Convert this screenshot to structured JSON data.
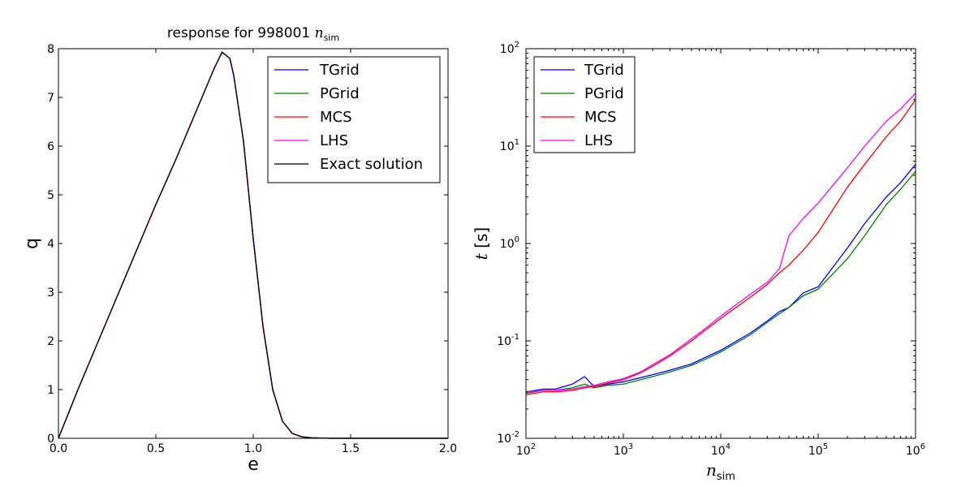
{
  "colors": {
    "TGrid": "#0000ff",
    "PGrid": "#008000",
    "MCS": "#ff0000",
    "LHS": "#ff00ff",
    "Exact solution": "#000000"
  },
  "chart_data": [
    {
      "type": "line",
      "title": "response for 998001",
      "title_math": "n",
      "title_math_sub": "sim",
      "xlabel": "e",
      "ylabel": "q",
      "xlim": [
        0.0,
        2.0
      ],
      "ylim": [
        0,
        8
      ],
      "xticks": [
        "0.0",
        "0.5",
        "1.0",
        "1.5",
        "2.0"
      ],
      "yticks": [
        "0",
        "1",
        "2",
        "3",
        "4",
        "5",
        "6",
        "7",
        "8"
      ],
      "legend_position": "upper right",
      "legend": [
        "TGrid",
        "PGrid",
        "MCS",
        "LHS",
        "Exact solution"
      ],
      "x": [
        0.0,
        0.1,
        0.2,
        0.3,
        0.4,
        0.5,
        0.6,
        0.7,
        0.8,
        0.84,
        0.88,
        0.9,
        0.95,
        1.0,
        1.05,
        1.1,
        1.15,
        1.2,
        1.25,
        1.3,
        1.4,
        1.5,
        1.75,
        2.0
      ],
      "series": [
        {
          "name": "TGrid",
          "values": [
            0.0,
            1.0,
            1.95,
            2.9,
            3.85,
            4.8,
            5.7,
            6.65,
            7.6,
            7.93,
            7.8,
            7.45,
            6.1,
            4.1,
            2.3,
            1.0,
            0.35,
            0.1,
            0.03,
            0.01,
            0.0,
            0.0,
            0.0,
            0.0
          ]
        },
        {
          "name": "PGrid",
          "values": [
            0.0,
            1.0,
            1.95,
            2.9,
            3.85,
            4.8,
            5.7,
            6.65,
            7.6,
            7.93,
            7.8,
            7.45,
            6.1,
            4.1,
            2.3,
            1.0,
            0.35,
            0.1,
            0.03,
            0.01,
            0.0,
            0.0,
            0.0,
            0.0
          ]
        },
        {
          "name": "MCS",
          "values": [
            0.0,
            1.0,
            1.95,
            2.9,
            3.85,
            4.8,
            5.7,
            6.65,
            7.6,
            7.93,
            7.8,
            7.45,
            6.1,
            4.1,
            2.3,
            1.0,
            0.35,
            0.1,
            0.03,
            0.01,
            0.0,
            0.0,
            0.0,
            0.0
          ]
        },
        {
          "name": "LHS",
          "values": [
            0.0,
            1.0,
            1.95,
            2.9,
            3.85,
            4.8,
            5.7,
            6.65,
            7.6,
            7.93,
            7.8,
            7.45,
            6.1,
            4.1,
            2.3,
            1.0,
            0.35,
            0.1,
            0.03,
            0.01,
            0.0,
            0.0,
            0.0,
            0.0
          ]
        },
        {
          "name": "Exact solution",
          "values": [
            0.0,
            1.0,
            1.95,
            2.9,
            3.85,
            4.8,
            5.7,
            6.65,
            7.6,
            7.93,
            7.8,
            7.45,
            6.1,
            4.1,
            2.3,
            1.0,
            0.35,
            0.1,
            0.03,
            0.01,
            0.0,
            0.0,
            0.0,
            0.0
          ]
        }
      ]
    },
    {
      "type": "line",
      "log_x": true,
      "log_y": true,
      "xlabel_math": "n",
      "xlabel_math_sub": "sim",
      "ylabel_math": "t",
      "ylabel": "[s]",
      "xlim": [
        100,
        1000000
      ],
      "ylim": [
        0.01,
        100
      ],
      "xtick_exponents": [
        "2",
        "3",
        "4",
        "5",
        "6"
      ],
      "ytick_exponents": [
        "-2",
        "-1",
        "0",
        "1",
        "2"
      ],
      "tick_base": "10",
      "legend_position": "upper left",
      "legend": [
        "TGrid",
        "PGrid",
        "MCS",
        "LHS"
      ],
      "x": [
        100,
        150,
        200,
        300,
        400,
        500,
        700,
        1000,
        1500,
        2000,
        3000,
        5000,
        7000,
        10000,
        20000,
        30000,
        40000,
        50000,
        70000,
        100000,
        200000,
        300000,
        500000,
        700000,
        1000000
      ],
      "series": [
        {
          "name": "TGrid",
          "values": [
            0.03,
            0.032,
            0.032,
            0.036,
            0.043,
            0.034,
            0.036,
            0.038,
            0.042,
            0.045,
            0.05,
            0.058,
            0.068,
            0.08,
            0.12,
            0.16,
            0.2,
            0.22,
            0.31,
            0.36,
            0.9,
            1.6,
            3.0,
            4.2,
            6.5
          ]
        },
        {
          "name": "PGrid",
          "values": [
            0.029,
            0.031,
            0.031,
            0.033,
            0.036,
            0.033,
            0.035,
            0.036,
            0.04,
            0.043,
            0.048,
            0.056,
            0.065,
            0.077,
            0.115,
            0.155,
            0.19,
            0.22,
            0.29,
            0.34,
            0.7,
            1.2,
            2.5,
            3.6,
            5.5
          ]
        },
        {
          "name": "MCS",
          "values": [
            0.028,
            0.03,
            0.03,
            0.031,
            0.033,
            0.034,
            0.037,
            0.04,
            0.047,
            0.055,
            0.07,
            0.1,
            0.13,
            0.17,
            0.28,
            0.38,
            0.5,
            0.6,
            0.85,
            1.3,
            3.8,
            6.5,
            12.5,
            18.0,
            30.0
          ]
        },
        {
          "name": "LHS",
          "values": [
            0.03,
            0.031,
            0.031,
            0.032,
            0.034,
            0.035,
            0.038,
            0.041,
            0.048,
            0.057,
            0.072,
            0.105,
            0.135,
            0.18,
            0.3,
            0.4,
            0.55,
            1.2,
            1.8,
            2.6,
            6.0,
            10.0,
            18.0,
            24.0,
            35.0
          ]
        }
      ]
    }
  ]
}
